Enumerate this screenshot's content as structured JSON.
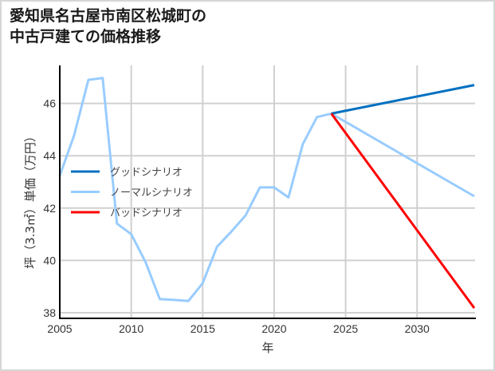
{
  "chart_data": {
    "type": "line",
    "title": "愛知県名古屋市南区松城町の中古戸建ての価格推移",
    "title_lines": [
      "愛知県名古屋市南区松城町の",
      "中古戸建ての価格推移"
    ],
    "xlabel": "年",
    "ylabel": "坪（3.3㎡）単価（万円）",
    "xlim": [
      2005,
      2034
    ],
    "ylim": [
      37.8,
      47.4
    ],
    "x_ticks": [
      2005,
      2010,
      2015,
      2020,
      2025,
      2030
    ],
    "y_ticks": [
      38,
      40,
      42,
      44,
      46
    ],
    "grid": true,
    "legend_position": "center-left",
    "series": [
      {
        "name": "グッドシナリオ",
        "color": "#0070C0",
        "x": [
          2024,
          2034
        ],
        "values": [
          45.61,
          46.7
        ]
      },
      {
        "name": "ノーマルシナリオ",
        "color": "#99CCFF",
        "x": [
          2005,
          2006,
          2007,
          2008,
          2009,
          2010,
          2011,
          2012,
          2013,
          2014,
          2015,
          2016,
          2017,
          2018,
          2019,
          2020,
          2021,
          2022,
          2023,
          2024,
          2034
        ],
        "values": [
          43.24,
          44.77,
          46.9,
          46.97,
          41.41,
          41.0,
          39.94,
          38.52,
          38.49,
          38.45,
          39.13,
          40.52,
          41.1,
          41.72,
          42.79,
          42.79,
          42.41,
          44.44,
          45.48,
          45.61,
          42.45
        ]
      },
      {
        "name": "バッドシナリオ",
        "color": "#FF0000",
        "x": [
          2024,
          2034
        ],
        "values": [
          45.61,
          38.18
        ]
      }
    ]
  }
}
